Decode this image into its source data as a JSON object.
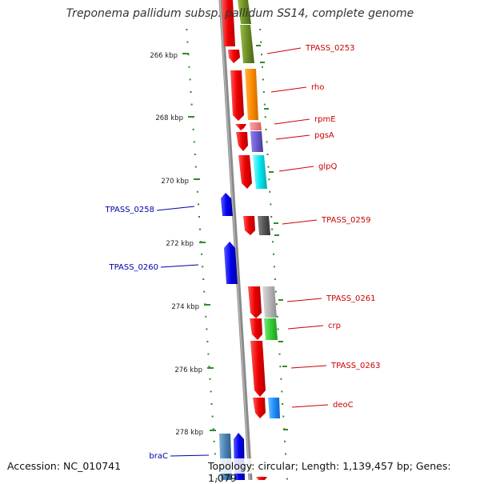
{
  "title": "Treponema pallidum subsp. pallidum SS14, complete genome",
  "footer": {
    "accession": "Accession: NC_010741",
    "summary": "Topology: circular; Length: 1,139,457 bp; Genes: 1,079"
  },
  "colors": {
    "forward_cds": "#ee0000",
    "reverse_cds": "#0000ee",
    "forward_label": "#cc0000",
    "reverse_label": "#0000aa",
    "tick": "#2e8b2e",
    "backbone": "#888888"
  },
  "kbp_ticks": [
    "266 kbp",
    "268 kbp",
    "270 kbp",
    "272 kbp",
    "274 kbp",
    "276 kbp",
    "278 kbp"
  ],
  "forward_genes": [
    {
      "name": "",
      "function_color": "#6b8e23"
    },
    {
      "name": "TPASS_0253",
      "function_color": "#6b8e23"
    },
    {
      "name": "rho",
      "function_color": "#ff8c00"
    },
    {
      "name": "rpmE",
      "function_color": "#f08080"
    },
    {
      "name": "pgsA",
      "function_color": "#6a5acd"
    },
    {
      "name": "glpQ",
      "function_color": "#00e5ee"
    },
    {
      "name": "TPASS_0259",
      "function_color": "#555555"
    },
    {
      "name": "TPASS_0261",
      "function_color": "#b0b0b0"
    },
    {
      "name": "crp",
      "function_color": "#32cd32"
    },
    {
      "name": "TPASS_0263",
      "function_color": ""
    },
    {
      "name": "deoC",
      "function_color": "#1e90ff"
    }
  ],
  "reverse_genes": [
    {
      "name": "TPASS_0258"
    },
    {
      "name": "TPASS_0260"
    },
    {
      "name": "braC",
      "function_color": "#4682b4"
    }
  ]
}
